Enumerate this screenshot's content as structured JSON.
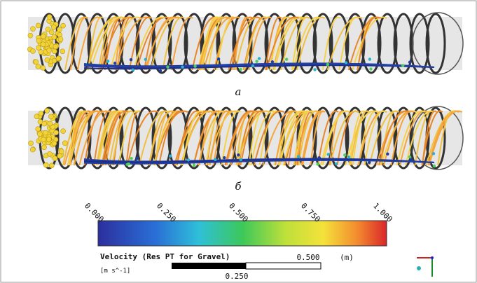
{
  "panels": [
    {
      "label": "a"
    },
    {
      "label": "б"
    }
  ],
  "colorbar": {
    "ticks": [
      "0.000",
      "0.250",
      "0.500",
      "0.750",
      "1.000"
    ],
    "title": "Velocity (Res PT for Gravel)",
    "units": "[m s^-1]"
  },
  "scale_bar": {
    "label_end": "0.500",
    "unit": "(m)",
    "label_mid": "0.250"
  }
}
